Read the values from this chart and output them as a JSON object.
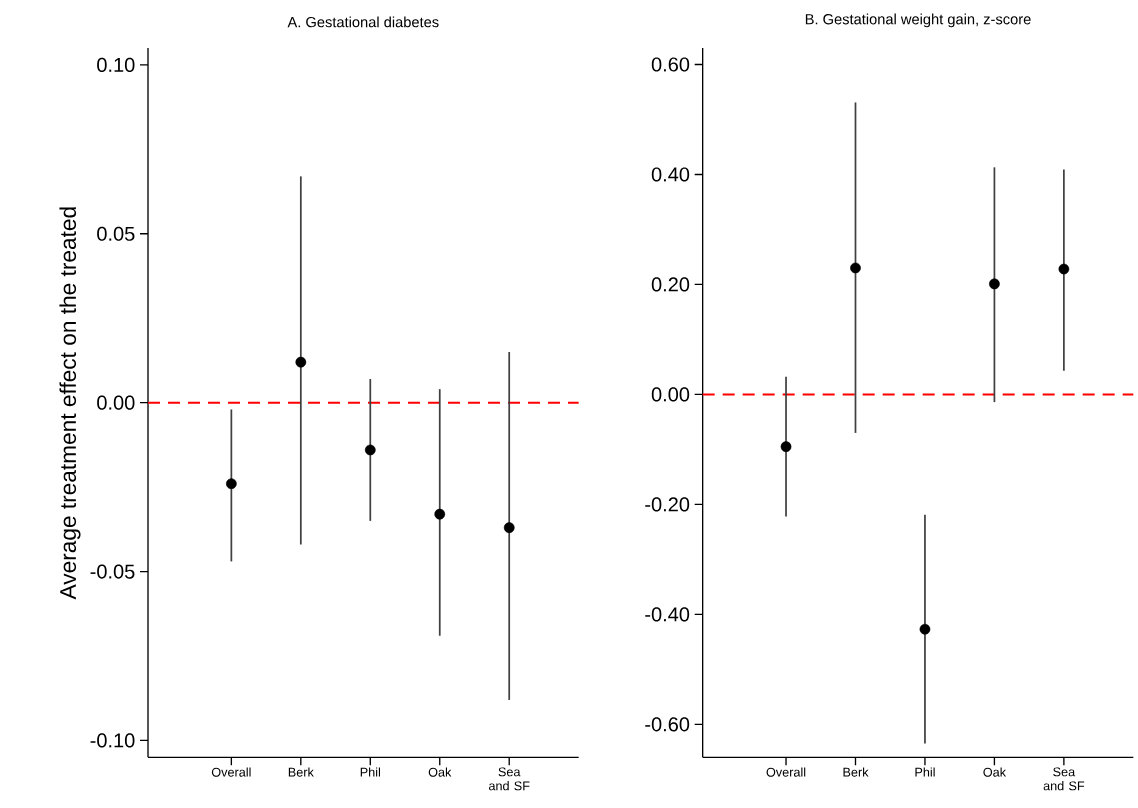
{
  "chart_data": [
    {
      "type": "scatter",
      "title": "A. Gestational diabetes",
      "ylabel": "Average treatment effect on the treated",
      "categories": [
        "Overall",
        "Berk",
        "Phil",
        "Oak",
        "Sea and SF"
      ],
      "series": [
        {
          "color": "#000000",
          "values": [
            -0.024,
            0.012,
            -0.014,
            -0.033,
            -0.037
          ],
          "errors": [
            [
              -0.047,
              -0.002
            ],
            [
              -0.042,
              0.067
            ],
            [
              -0.035,
              0.007
            ],
            [
              -0.069,
              0.004
            ],
            [
              -0.088,
              0.015
            ]
          ]
        }
      ],
      "marker": "circle",
      "ylim": [
        -0.105,
        0.105
      ],
      "yticks": [
        {
          "value": -0.1,
          "label": "-0.10"
        },
        {
          "value": -0.05,
          "label": "-0.05"
        },
        {
          "value": 0,
          "label": "0.00"
        },
        {
          "value": 0.05,
          "label": "0.05"
        },
        {
          "value": 0.1,
          "label": "0.10"
        }
      ],
      "ref_lines": [
        {
          "axis": "y",
          "value": 0,
          "color": "#ff0000",
          "line_style": "dashed"
        }
      ]
    },
    {
      "type": "scatter",
      "title": "B. Gestational weight gain, z-score",
      "categories": [
        "Overall",
        "Berk",
        "Phil",
        "Oak",
        "Sea and SF"
      ],
      "series": [
        {
          "color": "#000000",
          "values": [
            -0.095,
            0.23,
            -0.427,
            0.201,
            0.228
          ],
          "errors": [
            [
              -0.222,
              0.032
            ],
            [
              -0.07,
              0.531
            ],
            [
              -0.635,
              -0.219
            ],
            [
              -0.014,
              0.413
            ],
            [
              0.043,
              0.409
            ]
          ]
        }
      ],
      "marker": "circle",
      "ylim": [
        -0.66,
        0.63
      ],
      "yticks": [
        {
          "value": -0.6,
          "label": "-0.60"
        },
        {
          "value": -0.4,
          "label": "-0.40"
        },
        {
          "value": -0.2,
          "label": "-0.20"
        },
        {
          "value": 0,
          "label": "0.00"
        },
        {
          "value": 0.2,
          "label": "0.20"
        },
        {
          "value": 0.4,
          "label": "0.40"
        },
        {
          "value": 0.6,
          "label": "0.60"
        }
      ],
      "ref_lines": [
        {
          "axis": "y",
          "value": 0,
          "color": "#ff0000",
          "line_style": "dashed"
        }
      ]
    }
  ]
}
